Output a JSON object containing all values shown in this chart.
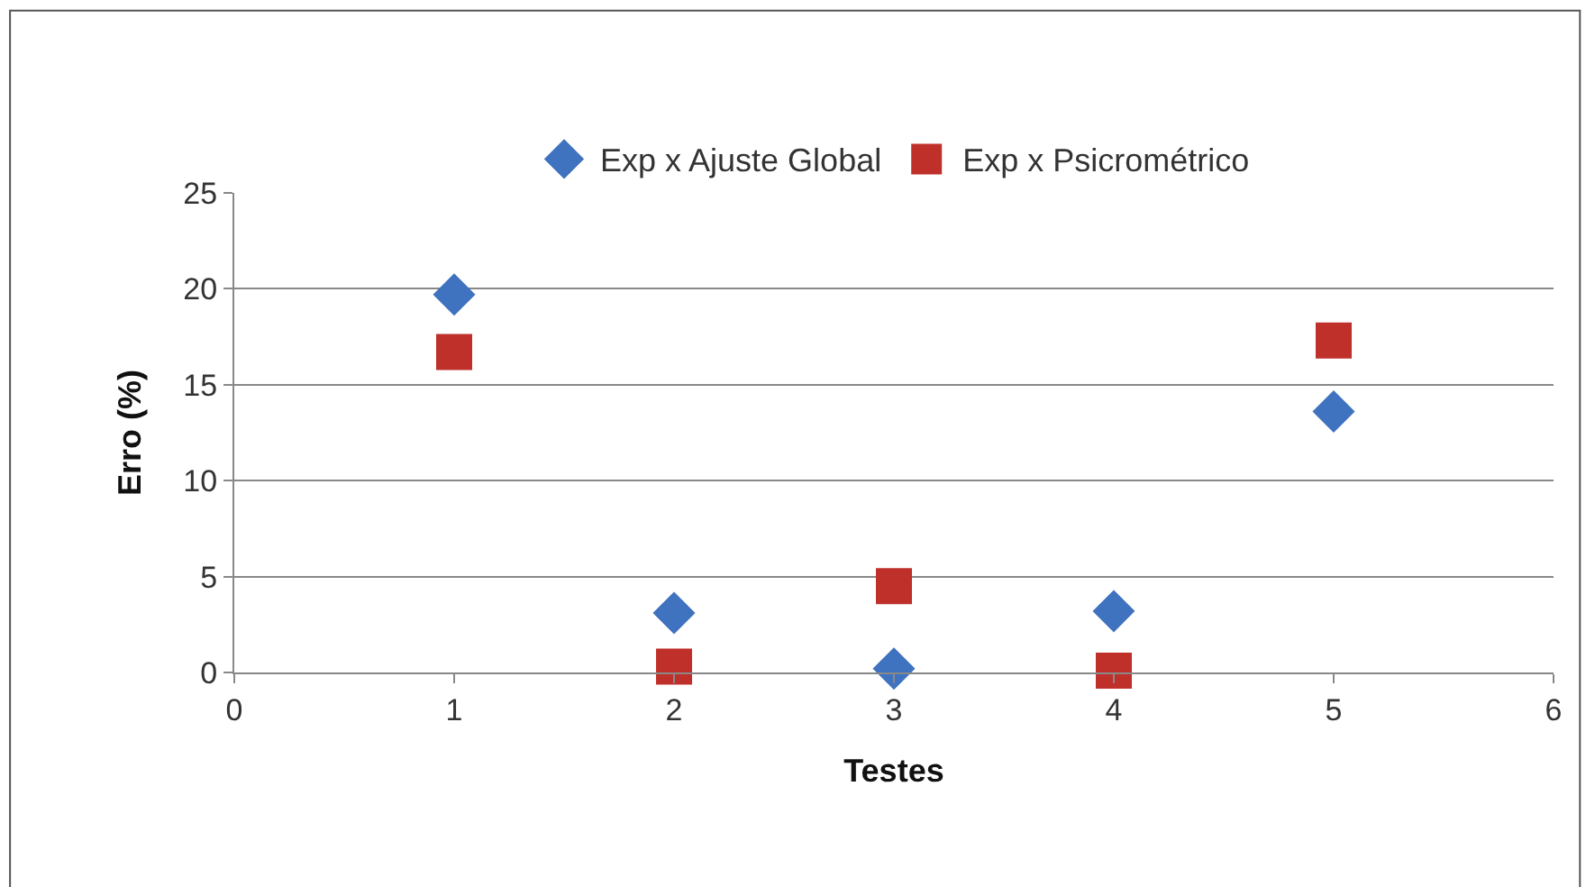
{
  "chart_data": {
    "type": "scatter",
    "xlabel": "Testes",
    "ylabel": "Erro (%)",
    "x": [
      1,
      2,
      3,
      4,
      5
    ],
    "series": [
      {
        "name": "Exp x Ajuste Global",
        "color": "#3f72bf",
        "marker": "diamond",
        "values": [
          19.7,
          3.1,
          0.2,
          3.2,
          13.6
        ]
      },
      {
        "name": "Exp x Psicrométrico",
        "color": "#c0302b",
        "marker": "square",
        "values": [
          16.7,
          0.3,
          4.5,
          0.1,
          17.3
        ]
      }
    ],
    "xlim": [
      0,
      6
    ],
    "xticks": [
      0,
      1,
      2,
      3,
      4,
      5,
      6
    ],
    "ylim": [
      0,
      25
    ],
    "yticks": [
      0,
      5,
      10,
      15,
      20,
      25
    ],
    "grid": "y",
    "legend": "top"
  }
}
